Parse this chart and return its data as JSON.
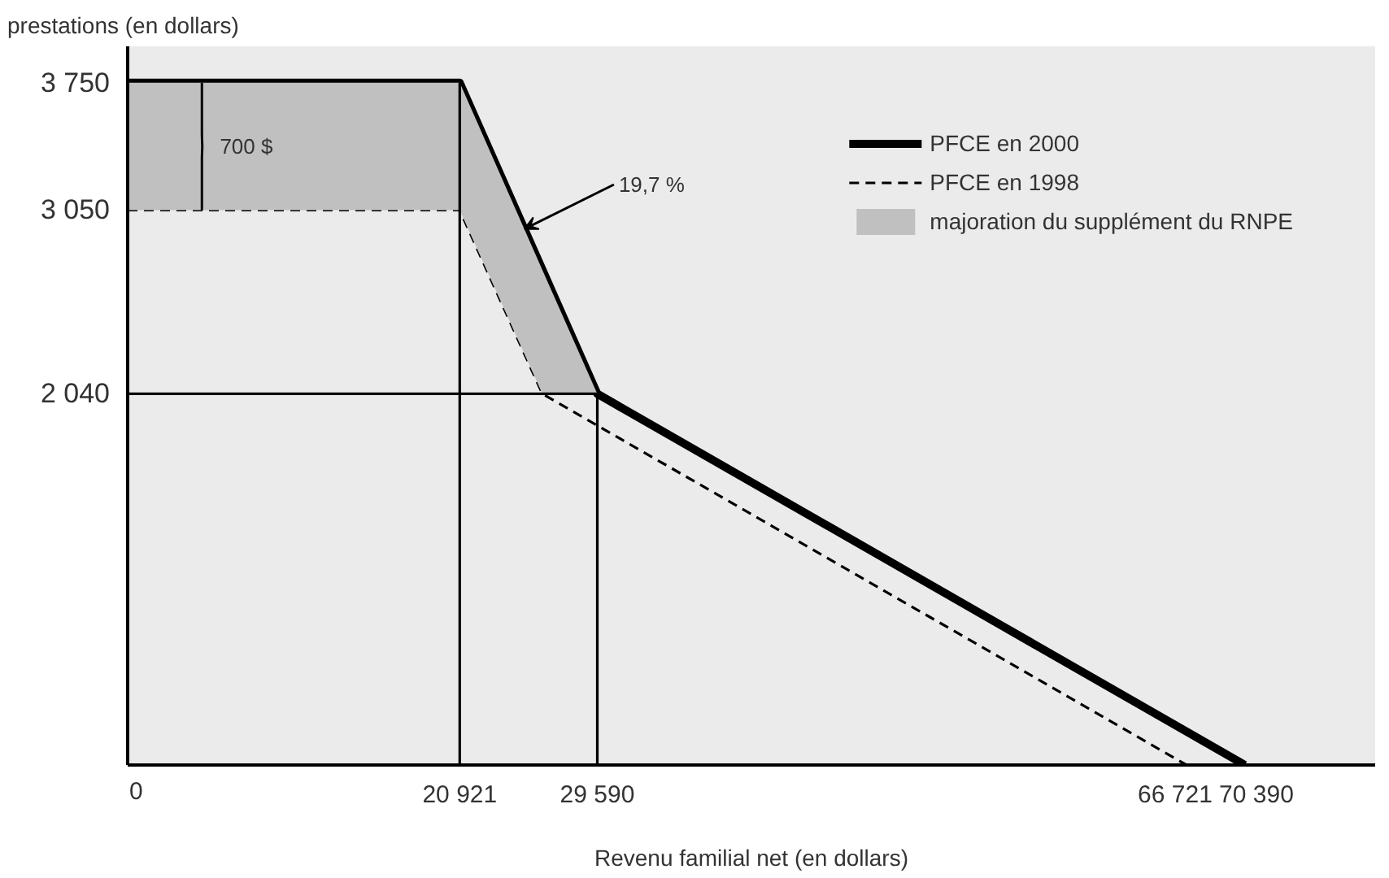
{
  "chart_data": {
    "type": "line",
    "ylabel": "prestations (en dollars)",
    "xlabel": "Revenu familial net (en dollars)",
    "xlim": [
      0,
      78600
    ],
    "ylim": [
      0,
      3950
    ],
    "xticks": [
      0,
      {
        "value": 20921,
        "label": "20 921"
      },
      {
        "value": 29590,
        "label": "29 590"
      },
      {
        "value": 66721,
        "label": "66 721"
      },
      {
        "value": 70390,
        "label": "70 390"
      }
    ],
    "yticks": [
      {
        "value": 2040,
        "label": "2 040"
      },
      {
        "value": 3050,
        "label": "3 050"
      },
      {
        "value": 3750,
        "label": "3 750"
      }
    ],
    "series": [
      {
        "name": "PFCE en 2000",
        "color": "#000000",
        "line_style": "solid",
        "x": [
          0,
          20921,
          29590,
          70390
        ],
        "values": [
          3750,
          3750,
          2040,
          0
        ]
      },
      {
        "name": "PFCE en 1998",
        "color": "#000000",
        "line_style": "dashed",
        "x": [
          0,
          20921,
          26130,
          66721
        ],
        "values": [
          3050,
          3050,
          2040,
          0
        ]
      },
      {
        "name": "majoration du supplément du RNPE",
        "type": "area",
        "color": "#c0c0c0",
        "x": [
          0,
          20921,
          26130,
          29590
        ],
        "values": [
          3750,
          3750,
          2720,
          2040
        ]
      }
    ],
    "ref_lines": [
      {
        "axis": "y",
        "value": 2040
      },
      {
        "axis": "x",
        "value": 20921
      },
      {
        "axis": "x",
        "value": 29590
      }
    ],
    "annotations": [
      "700 $",
      {
        "text": "19,7 %",
        "x": 25000,
        "y": 2946
      }
    ],
    "legend": "top right",
    "grid": false
  }
}
